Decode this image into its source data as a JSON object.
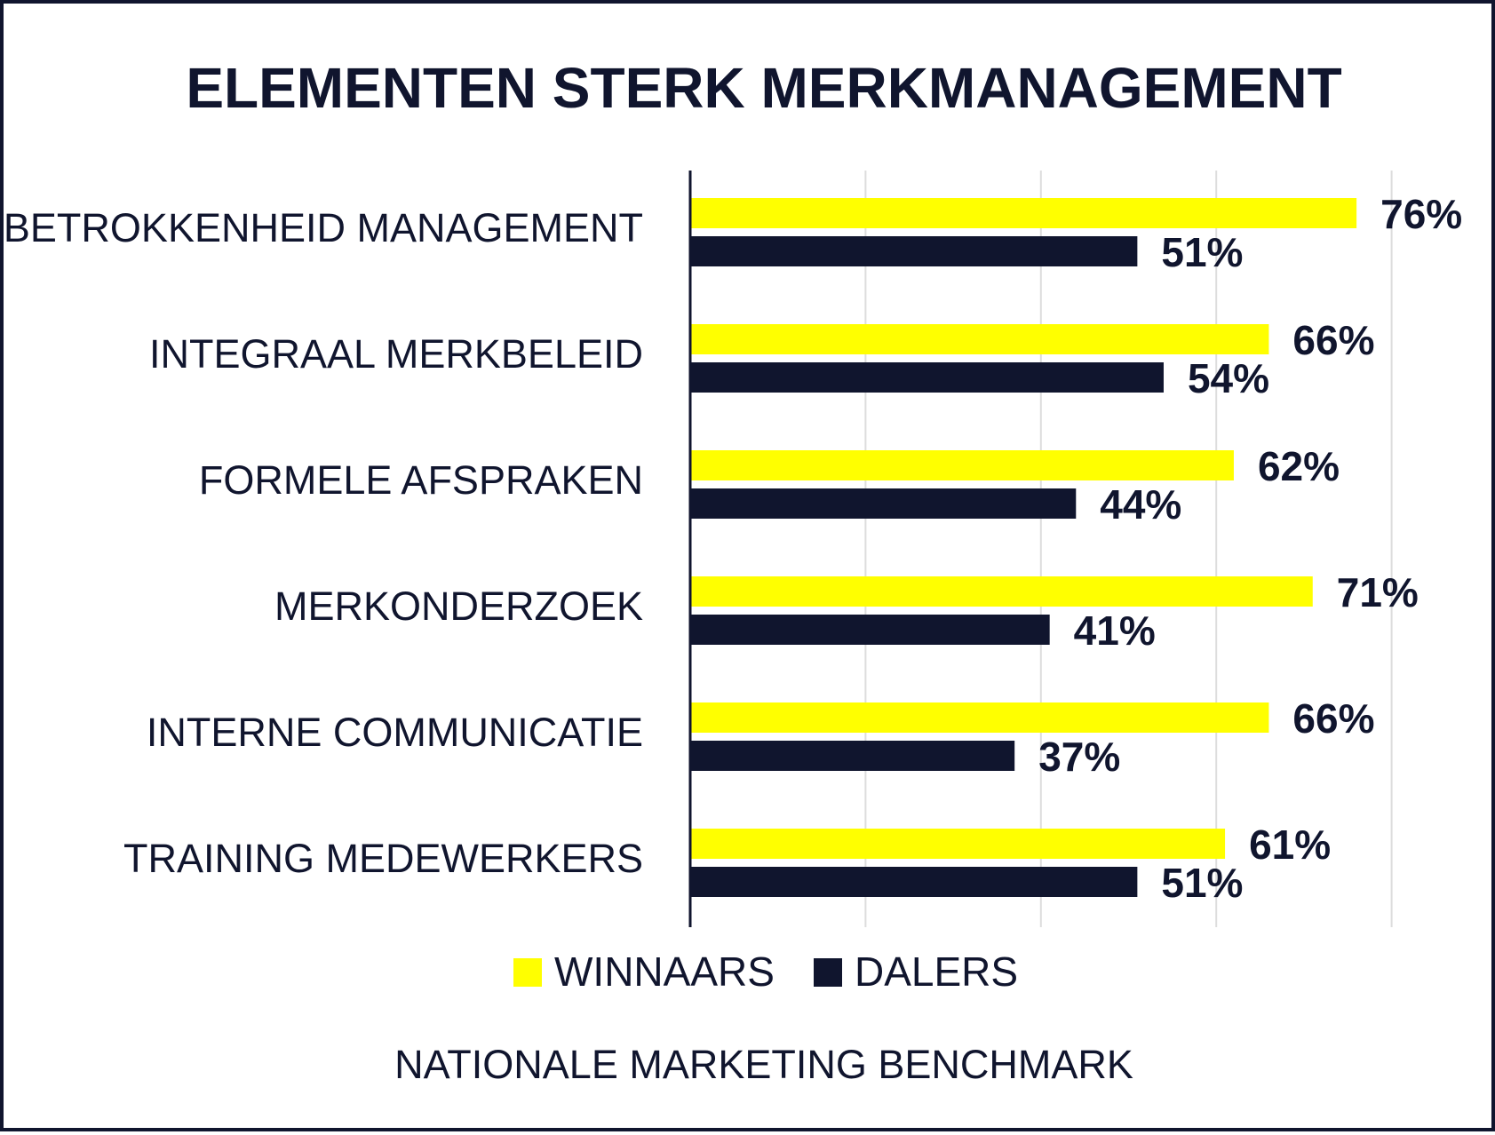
{
  "colors": {
    "winnaars": "#ffff00",
    "dalers": "#10152e",
    "text": "#10152e",
    "grid": "#dddddd"
  },
  "chart_data": {
    "type": "bar",
    "orientation": "horizontal",
    "title": "ELEMENTEN STERK MERKMANAGEMENT",
    "categories": [
      "BETROKKENHEID MANAGEMENT",
      "INTEGRAAL MERKBELEID",
      "FORMELE AFSPRAKEN",
      "MERKONDERZOEK",
      "INTERNE COMMUNICATIE",
      "TRAINING MEDEWERKERS"
    ],
    "series": [
      {
        "name": "WINNAARS",
        "values": [
          76,
          66,
          62,
          71,
          66,
          61
        ],
        "labels": [
          "76%",
          "66%",
          "62%",
          "71%",
          "66%",
          "61%"
        ]
      },
      {
        "name": "DALERS",
        "values": [
          51,
          54,
          44,
          41,
          37,
          51
        ],
        "labels": [
          "51%",
          "54%",
          "44%",
          "41%",
          "37%",
          "51%"
        ]
      }
    ],
    "xlim": [
      0,
      80
    ],
    "grid": true,
    "legend": "bottom",
    "source": "NATIONALE MARKETING BENCHMARK"
  }
}
